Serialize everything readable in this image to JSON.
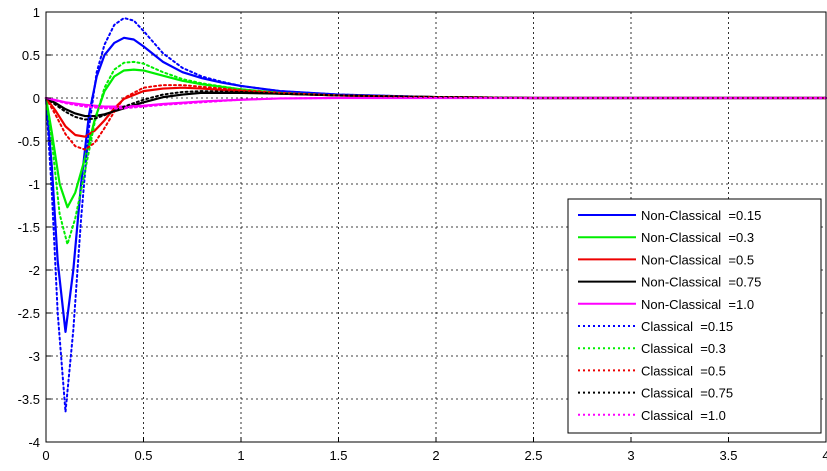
{
  "chart_data": {
    "type": "line",
    "title": "",
    "xlabel": "",
    "ylabel": "",
    "xlim": [
      0,
      4
    ],
    "ylim": [
      -4,
      1
    ],
    "grid": true,
    "legend_position": "bottom-right",
    "x_ticks": [
      0,
      0.5,
      1,
      1.5,
      2,
      2.5,
      3,
      3.5,
      4
    ],
    "x_tick_labels": [
      "0",
      "0.5",
      "1",
      "1.5",
      "2",
      "2.5",
      "3",
      "3.5",
      "4"
    ],
    "y_ticks": [
      1,
      0.5,
      0,
      -0.5,
      -1,
      -1.5,
      -2,
      -2.5,
      -3,
      -3.5,
      -4
    ],
    "y_tick_labels": [
      "1",
      "0.5",
      "0",
      "-0.5",
      "-1",
      "-1.5",
      "-2",
      "-2.5",
      "-3",
      "-3.5",
      "-4"
    ],
    "series": [
      {
        "name": "Non-Classical  =0.15",
        "color": "#0000ff",
        "dash": "solid",
        "points": [
          [
            0,
            0
          ],
          [
            0.03,
            -0.8
          ],
          [
            0.06,
            -1.9
          ],
          [
            0.1,
            -2.72
          ],
          [
            0.14,
            -2.0
          ],
          [
            0.18,
            -1.0
          ],
          [
            0.22,
            -0.2
          ],
          [
            0.26,
            0.25
          ],
          [
            0.3,
            0.5
          ],
          [
            0.35,
            0.64
          ],
          [
            0.4,
            0.7
          ],
          [
            0.45,
            0.68
          ],
          [
            0.5,
            0.6
          ],
          [
            0.6,
            0.42
          ],
          [
            0.7,
            0.3
          ],
          [
            0.8,
            0.23
          ],
          [
            0.9,
            0.18
          ],
          [
            1.0,
            0.14
          ],
          [
            1.2,
            0.08
          ],
          [
            1.5,
            0.04
          ],
          [
            2.0,
            0.01
          ],
          [
            2.5,
            0.0
          ],
          [
            3.0,
            0.0
          ],
          [
            3.5,
            0.0
          ],
          [
            4.0,
            0.0
          ]
        ]
      },
      {
        "name": "Non-Classical  =0.3",
        "color": "#00ee00",
        "dash": "solid",
        "points": [
          [
            0,
            0
          ],
          [
            0.03,
            -0.4
          ],
          [
            0.07,
            -1.0
          ],
          [
            0.11,
            -1.27
          ],
          [
            0.15,
            -1.1
          ],
          [
            0.2,
            -0.7
          ],
          [
            0.25,
            -0.25
          ],
          [
            0.3,
            0.08
          ],
          [
            0.35,
            0.25
          ],
          [
            0.4,
            0.32
          ],
          [
            0.45,
            0.33
          ],
          [
            0.5,
            0.32
          ],
          [
            0.6,
            0.26
          ],
          [
            0.7,
            0.2
          ],
          [
            0.8,
            0.16
          ],
          [
            1.0,
            0.1
          ],
          [
            1.2,
            0.06
          ],
          [
            1.5,
            0.03
          ],
          [
            2.0,
            0.01
          ],
          [
            2.5,
            0.0
          ],
          [
            3.0,
            0.0
          ],
          [
            3.5,
            0.0
          ],
          [
            4.0,
            0.0
          ]
        ]
      },
      {
        "name": "Non-Classical  =0.5",
        "color": "#ee0000",
        "dash": "solid",
        "points": [
          [
            0,
            0
          ],
          [
            0.05,
            -0.15
          ],
          [
            0.1,
            -0.33
          ],
          [
            0.15,
            -0.43
          ],
          [
            0.2,
            -0.45
          ],
          [
            0.25,
            -0.38
          ],
          [
            0.3,
            -0.26
          ],
          [
            0.35,
            -0.12
          ],
          [
            0.4,
            -0.01
          ],
          [
            0.5,
            0.08
          ],
          [
            0.6,
            0.11
          ],
          [
            0.7,
            0.12
          ],
          [
            0.8,
            0.11
          ],
          [
            1.0,
            0.08
          ],
          [
            1.2,
            0.05
          ],
          [
            1.5,
            0.03
          ],
          [
            2.0,
            0.01
          ],
          [
            2.5,
            0.0
          ],
          [
            3.0,
            0.0
          ],
          [
            3.5,
            0.0
          ],
          [
            4.0,
            0.0
          ]
        ]
      },
      {
        "name": "Non-Classical  =0.75",
        "color": "#000000",
        "dash": "solid",
        "points": [
          [
            0,
            0
          ],
          [
            0.05,
            -0.06
          ],
          [
            0.1,
            -0.13
          ],
          [
            0.15,
            -0.18
          ],
          [
            0.2,
            -0.21
          ],
          [
            0.25,
            -0.21
          ],
          [
            0.3,
            -0.19
          ],
          [
            0.4,
            -0.12
          ],
          [
            0.5,
            -0.05
          ],
          [
            0.6,
            0.01
          ],
          [
            0.7,
            0.04
          ],
          [
            0.8,
            0.06
          ],
          [
            1.0,
            0.06
          ],
          [
            1.2,
            0.05
          ],
          [
            1.5,
            0.03
          ],
          [
            2.0,
            0.01
          ],
          [
            2.5,
            0.0
          ],
          [
            3.0,
            0.0
          ],
          [
            3.5,
            0.0
          ],
          [
            4.0,
            0.0
          ]
        ]
      },
      {
        "name": "Non-Classical  =1.0",
        "color": "#ff00ff",
        "dash": "solid",
        "points": [
          [
            0,
            0
          ],
          [
            0.1,
            -0.05
          ],
          [
            0.2,
            -0.08
          ],
          [
            0.3,
            -0.1
          ],
          [
            0.4,
            -0.1
          ],
          [
            0.5,
            -0.09
          ],
          [
            0.6,
            -0.07
          ],
          [
            0.8,
            -0.04
          ],
          [
            1.0,
            -0.02
          ],
          [
            1.2,
            -0.005
          ],
          [
            1.5,
            0.0
          ],
          [
            2.0,
            0.0
          ],
          [
            2.5,
            0.0
          ],
          [
            3.0,
            0.0
          ],
          [
            3.5,
            0.0
          ],
          [
            4.0,
            0.0
          ]
        ]
      },
      {
        "name": "Classical  =0.15",
        "color": "#0000ff",
        "dash": "dotted",
        "points": [
          [
            0,
            0
          ],
          [
            0.03,
            -1.1
          ],
          [
            0.06,
            -2.5
          ],
          [
            0.1,
            -3.65
          ],
          [
            0.14,
            -2.7
          ],
          [
            0.18,
            -1.4
          ],
          [
            0.22,
            -0.35
          ],
          [
            0.26,
            0.3
          ],
          [
            0.3,
            0.62
          ],
          [
            0.35,
            0.85
          ],
          [
            0.4,
            0.93
          ],
          [
            0.45,
            0.9
          ],
          [
            0.5,
            0.78
          ],
          [
            0.6,
            0.52
          ],
          [
            0.7,
            0.35
          ],
          [
            0.8,
            0.25
          ],
          [
            0.9,
            0.19
          ],
          [
            1.0,
            0.14
          ],
          [
            1.2,
            0.08
          ],
          [
            1.5,
            0.04
          ],
          [
            2.0,
            0.01
          ],
          [
            2.5,
            0.0
          ],
          [
            3.0,
            0.0
          ],
          [
            3.5,
            0.0
          ],
          [
            4.0,
            0.0
          ]
        ]
      },
      {
        "name": "Classical  =0.3",
        "color": "#00ee00",
        "dash": "dotted",
        "points": [
          [
            0,
            0
          ],
          [
            0.03,
            -0.5
          ],
          [
            0.07,
            -1.35
          ],
          [
            0.11,
            -1.7
          ],
          [
            0.15,
            -1.4
          ],
          [
            0.2,
            -0.85
          ],
          [
            0.25,
            -0.28
          ],
          [
            0.3,
            0.12
          ],
          [
            0.35,
            0.33
          ],
          [
            0.4,
            0.41
          ],
          [
            0.45,
            0.42
          ],
          [
            0.5,
            0.4
          ],
          [
            0.6,
            0.3
          ],
          [
            0.7,
            0.22
          ],
          [
            0.8,
            0.17
          ],
          [
            1.0,
            0.1
          ],
          [
            1.2,
            0.06
          ],
          [
            1.5,
            0.03
          ],
          [
            2.0,
            0.01
          ],
          [
            2.5,
            0.0
          ],
          [
            3.0,
            0.0
          ],
          [
            3.5,
            0.0
          ],
          [
            4.0,
            0.0
          ]
        ]
      },
      {
        "name": "Classical  =0.5",
        "color": "#ee0000",
        "dash": "dotted",
        "points": [
          [
            0,
            0
          ],
          [
            0.05,
            -0.2
          ],
          [
            0.1,
            -0.42
          ],
          [
            0.15,
            -0.56
          ],
          [
            0.2,
            -0.6
          ],
          [
            0.25,
            -0.52
          ],
          [
            0.3,
            -0.35
          ],
          [
            0.35,
            -0.16
          ],
          [
            0.4,
            0.0
          ],
          [
            0.5,
            0.12
          ],
          [
            0.6,
            0.15
          ],
          [
            0.7,
            0.15
          ],
          [
            0.8,
            0.13
          ],
          [
            1.0,
            0.09
          ],
          [
            1.2,
            0.06
          ],
          [
            1.5,
            0.03
          ],
          [
            2.0,
            0.01
          ],
          [
            2.5,
            0.0
          ],
          [
            3.0,
            0.0
          ],
          [
            3.5,
            0.0
          ],
          [
            4.0,
            0.0
          ]
        ]
      },
      {
        "name": "Classical  =0.75",
        "color": "#000000",
        "dash": "dotted",
        "points": [
          [
            0,
            0
          ],
          [
            0.05,
            -0.08
          ],
          [
            0.1,
            -0.16
          ],
          [
            0.15,
            -0.22
          ],
          [
            0.2,
            -0.25
          ],
          [
            0.25,
            -0.24
          ],
          [
            0.3,
            -0.2
          ],
          [
            0.4,
            -0.1
          ],
          [
            0.5,
            -0.02
          ],
          [
            0.6,
            0.04
          ],
          [
            0.7,
            0.07
          ],
          [
            0.8,
            0.08
          ],
          [
            1.0,
            0.07
          ],
          [
            1.2,
            0.05
          ],
          [
            1.5,
            0.03
          ],
          [
            2.0,
            0.01
          ],
          [
            2.5,
            0.0
          ],
          [
            3.0,
            0.0
          ],
          [
            3.5,
            0.0
          ],
          [
            4.0,
            0.0
          ]
        ]
      },
      {
        "name": "Classical  =1.0",
        "color": "#ff00ff",
        "dash": "dotted",
        "points": [
          [
            0,
            0
          ],
          [
            0.1,
            -0.06
          ],
          [
            0.2,
            -0.1
          ],
          [
            0.3,
            -0.12
          ],
          [
            0.4,
            -0.12
          ],
          [
            0.5,
            -0.1
          ],
          [
            0.6,
            -0.08
          ],
          [
            0.8,
            -0.05
          ],
          [
            1.0,
            -0.02
          ],
          [
            1.2,
            -0.005
          ],
          [
            1.5,
            0.0
          ],
          [
            2.0,
            0.0
          ],
          [
            2.5,
            0.0
          ],
          [
            3.0,
            0.0
          ],
          [
            3.5,
            0.0
          ],
          [
            4.0,
            0.0
          ]
        ]
      }
    ]
  }
}
